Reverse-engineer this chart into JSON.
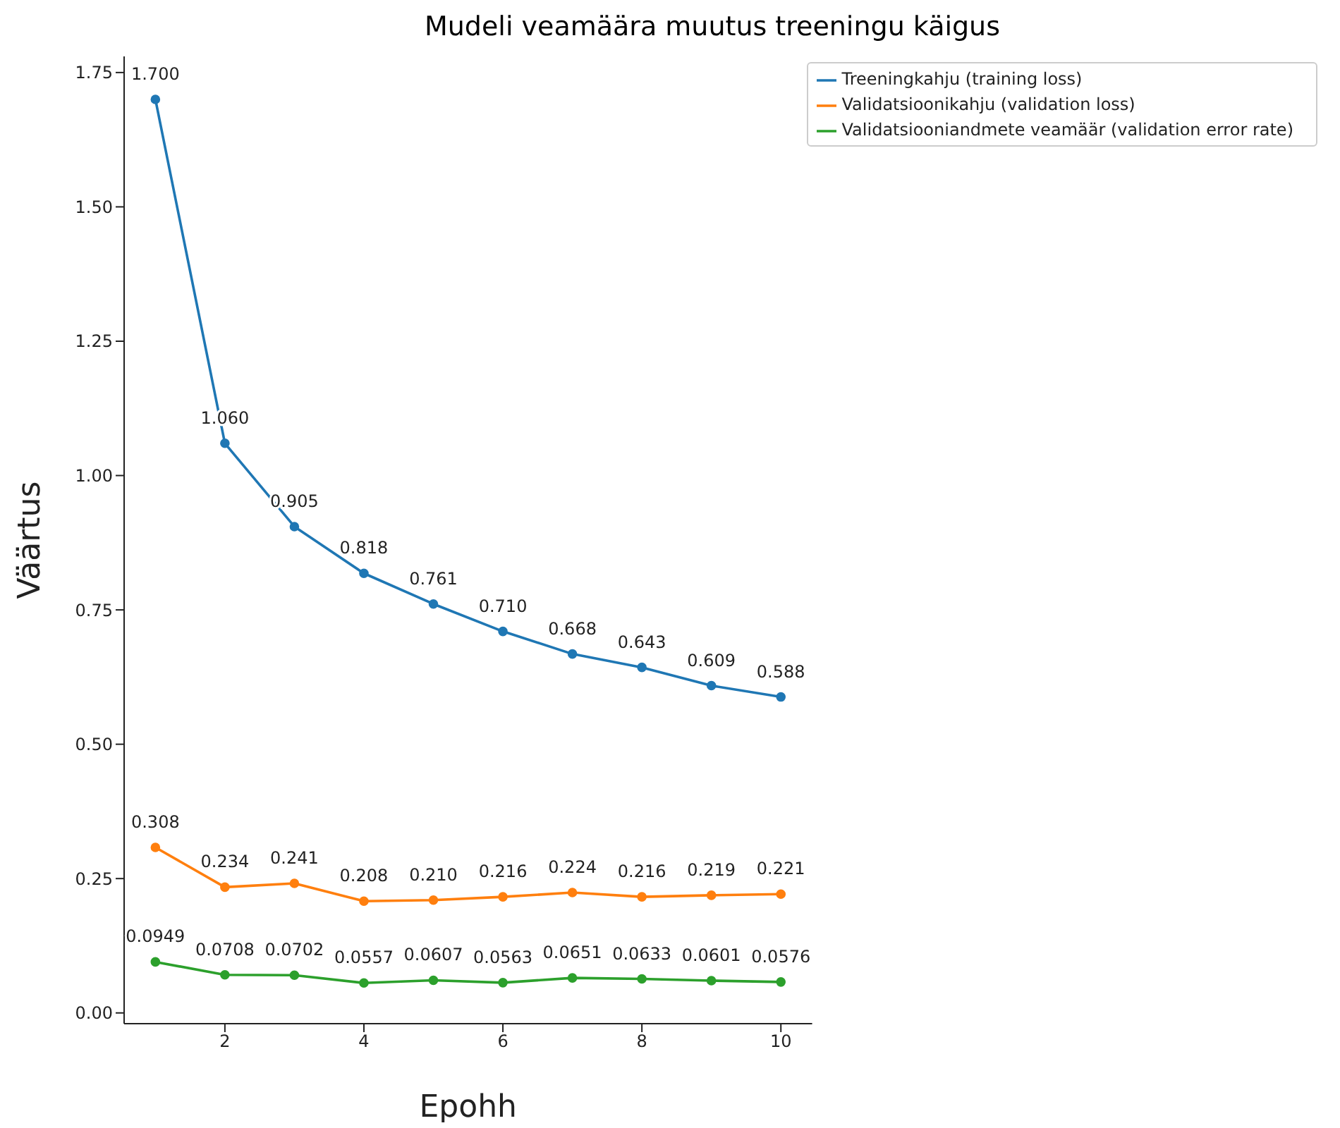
{
  "chart_data": {
    "type": "line",
    "title": "Mudeli veamäära muutus treeningu käigus",
    "xlabel": "Epohh",
    "ylabel": "Väärtus",
    "x": [
      1,
      2,
      3,
      4,
      5,
      6,
      7,
      8,
      9,
      10
    ],
    "series": [
      {
        "name": "Treeningkahju (training loss)",
        "color": "#1f77b4",
        "values": [
          1.7,
          1.06,
          0.905,
          0.818,
          0.761,
          0.71,
          0.668,
          0.643,
          0.609,
          0.588
        ],
        "value_labels": [
          "1.700",
          "1.060",
          "0.905",
          "0.818",
          "0.761",
          "0.710",
          "0.668",
          "0.643",
          "0.609",
          "0.588"
        ]
      },
      {
        "name": "Validatsioonikahju (validation loss)",
        "color": "#ff7f0e",
        "values": [
          0.308,
          0.234,
          0.241,
          0.208,
          0.21,
          0.216,
          0.224,
          0.216,
          0.219,
          0.221
        ],
        "value_labels": [
          "0.308",
          "0.234",
          "0.241",
          "0.208",
          "0.210",
          "0.216",
          "0.224",
          "0.216",
          "0.219",
          "0.221"
        ]
      },
      {
        "name": "Validatsiooniandmete veamäär (validation error rate)",
        "color": "#2ca02c",
        "values": [
          0.0949,
          0.0708,
          0.0702,
          0.0557,
          0.0607,
          0.0563,
          0.0651,
          0.0633,
          0.0601,
          0.0576
        ],
        "value_labels": [
          "0.0949",
          "0.0708",
          "0.0702",
          "0.0557",
          "0.0607",
          "0.0563",
          "0.0651",
          "0.0633",
          "0.0601",
          "0.0576"
        ]
      }
    ],
    "xlim": [
      0.55,
      10.45
    ],
    "xticks": [
      2,
      4,
      6,
      8,
      10
    ],
    "ylim": [
      -0.02,
      1.78
    ],
    "yticks": [
      {
        "value": 0,
        "label": "0.00"
      },
      {
        "value": 0.25,
        "label": "0.25"
      },
      {
        "value": 0.5,
        "label": "0.50"
      },
      {
        "value": 0.75,
        "label": "0.75"
      },
      {
        "value": 1,
        "label": "1.00"
      },
      {
        "value": 1.25,
        "label": "1.25"
      },
      {
        "value": 1.5,
        "label": "1.50"
      },
      {
        "value": 1.75,
        "label": "1.75"
      }
    ],
    "grid": false,
    "legend": "top right",
    "marker": "circle",
    "line_style": "solid"
  }
}
